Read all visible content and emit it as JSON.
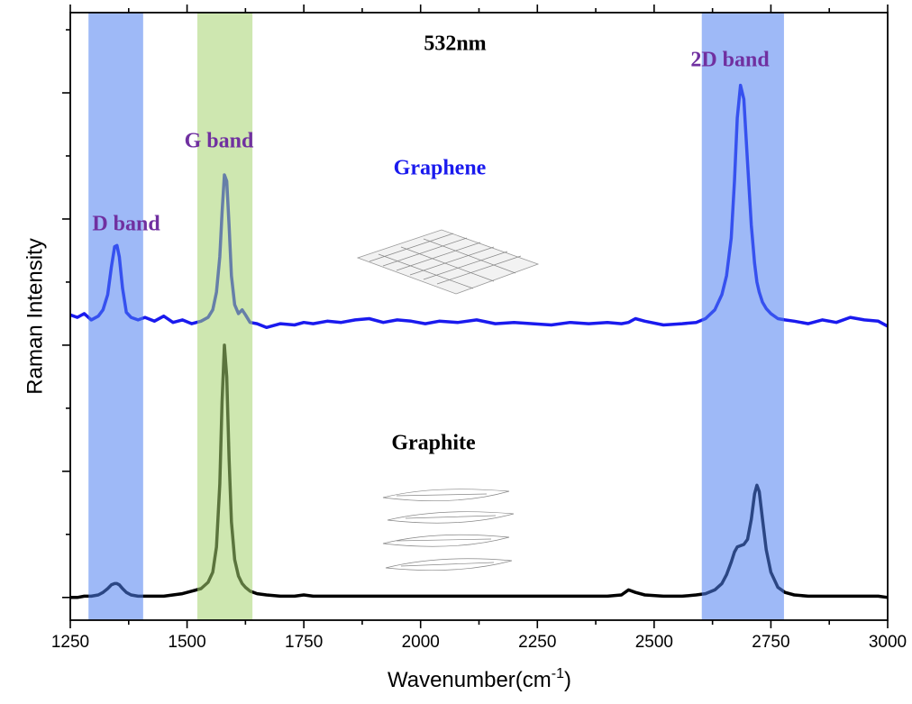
{
  "chart_data": {
    "type": "line",
    "xlabel": {
      "text": "Wavenumber(cm",
      "superscript": "-1",
      "suffix": ")"
    },
    "ylabel": "Raman Intensity",
    "xlim": [
      1250,
      3000
    ],
    "ylim": [
      -0.18,
      4.636
    ],
    "xticks": [
      1250,
      1500,
      1750,
      2000,
      2250,
      2500,
      2750,
      3000
    ],
    "xminor": [
      1375,
      1625,
      1875,
      2125,
      2375,
      2625,
      2875
    ],
    "yticks": [
      0,
      0.5,
      1,
      1.5,
      2,
      2.5,
      3,
      3.5,
      4,
      4.5
    ],
    "annotations": [
      {
        "text": "532nm",
        "color": "#000000"
      },
      {
        "text": "2D band",
        "color": "#7030a0"
      },
      {
        "text": "G band",
        "color": "#7030a0"
      },
      {
        "text": "D band",
        "color": "#7030a0"
      },
      {
        "text": "Graphene",
        "color": "#1a1aee"
      },
      {
        "text": "Graphite",
        "color": "#000000"
      }
    ],
    "bands": [
      {
        "range": [
          1289,
          1406
        ],
        "color": "#4f7ff0"
      },
      {
        "range": [
          1522,
          1640
        ],
        "color": "#a6d46f"
      },
      {
        "range": [
          2602,
          2778
        ],
        "color": "#4f7ff0"
      }
    ],
    "x": [
      1250,
      1265,
      1280,
      1295,
      1310,
      1320,
      1330,
      1338,
      1345,
      1350,
      1355,
      1362,
      1370,
      1380,
      1395,
      1410,
      1430,
      1450,
      1470,
      1490,
      1510,
      1530,
      1545,
      1555,
      1563,
      1570,
      1575,
      1580,
      1585,
      1590,
      1595,
      1602,
      1610,
      1618,
      1625,
      1635,
      1650,
      1670,
      1700,
      1730,
      1750,
      1770,
      1800,
      1830,
      1860,
      1890,
      1920,
      1950,
      1980,
      2010,
      2040,
      2080,
      2120,
      2160,
      2200,
      2240,
      2280,
      2320,
      2360,
      2400,
      2430,
      2445,
      2460,
      2480,
      2520,
      2560,
      2590,
      2610,
      2630,
      2645,
      2655,
      2665,
      2672,
      2678,
      2685,
      2692,
      2700,
      2708,
      2715,
      2720,
      2725,
      2732,
      2740,
      2750,
      2765,
      2780,
      2800,
      2830,
      2860,
      2890,
      2920,
      2950,
      2980,
      3000
    ],
    "series": [
      {
        "name": "Graphene",
        "color": "#1a1aee",
        "values": [
          2.24,
          2.22,
          2.25,
          2.2,
          2.23,
          2.28,
          2.4,
          2.62,
          2.78,
          2.79,
          2.7,
          2.45,
          2.26,
          2.22,
          2.2,
          2.22,
          2.19,
          2.23,
          2.18,
          2.2,
          2.17,
          2.19,
          2.22,
          2.28,
          2.42,
          2.7,
          3.05,
          3.35,
          3.3,
          2.95,
          2.55,
          2.32,
          2.25,
          2.28,
          2.24,
          2.18,
          2.17,
          2.14,
          2.17,
          2.16,
          2.18,
          2.17,
          2.19,
          2.18,
          2.2,
          2.21,
          2.18,
          2.2,
          2.19,
          2.17,
          2.19,
          2.18,
          2.2,
          2.17,
          2.18,
          2.17,
          2.16,
          2.18,
          2.17,
          2.18,
          2.17,
          2.18,
          2.21,
          2.19,
          2.16,
          2.17,
          2.18,
          2.21,
          2.28,
          2.4,
          2.55,
          2.85,
          3.3,
          3.8,
          4.06,
          3.95,
          3.45,
          2.95,
          2.65,
          2.5,
          2.42,
          2.34,
          2.29,
          2.25,
          2.21,
          2.2,
          2.19,
          2.17,
          2.2,
          2.18,
          2.22,
          2.2,
          2.19,
          2.15
        ]
      },
      {
        "name": "Graphite",
        "color": "#000000",
        "values": [
          0,
          0,
          0.01,
          0.01,
          0.02,
          0.04,
          0.07,
          0.1,
          0.11,
          0.11,
          0.1,
          0.07,
          0.04,
          0.02,
          0.01,
          0.01,
          0.01,
          0.01,
          0.02,
          0.03,
          0.05,
          0.07,
          0.12,
          0.2,
          0.4,
          0.9,
          1.55,
          2,
          1.75,
          1.1,
          0.6,
          0.3,
          0.17,
          0.11,
          0.08,
          0.05,
          0.03,
          0.02,
          0.01,
          0.01,
          0.02,
          0.01,
          0.01,
          0.01,
          0.01,
          0.01,
          0.01,
          0.01,
          0.01,
          0.01,
          0.01,
          0.01,
          0.01,
          0.01,
          0.01,
          0.01,
          0.01,
          0.01,
          0.01,
          0.01,
          0.02,
          0.06,
          0.04,
          0.02,
          0.01,
          0.01,
          0.02,
          0.03,
          0.06,
          0.11,
          0.18,
          0.28,
          0.36,
          0.4,
          0.41,
          0.42,
          0.46,
          0.62,
          0.82,
          0.89,
          0.84,
          0.62,
          0.38,
          0.2,
          0.08,
          0.04,
          0.02,
          0.01,
          0.01,
          0.01,
          0.01,
          0.01,
          0.01,
          0
        ]
      }
    ]
  }
}
